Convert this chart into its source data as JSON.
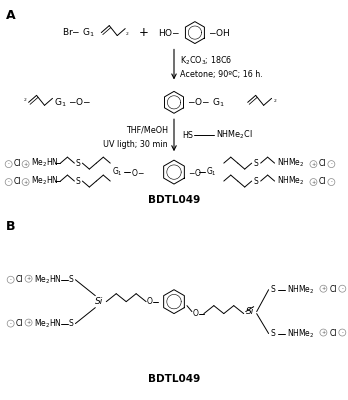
{
  "fig_width": 3.48,
  "fig_height": 4.0,
  "dpi": 100,
  "bg_color": "#ffffff",
  "label_A": "A",
  "label_B": "B",
  "compound_name": "BDTL049",
  "fs_main": 6.5,
  "fs_small": 5.5,
  "fs_cond": 5.8,
  "fs_label": 9,
  "fs_bold": 7.5,
  "lw": 0.7
}
